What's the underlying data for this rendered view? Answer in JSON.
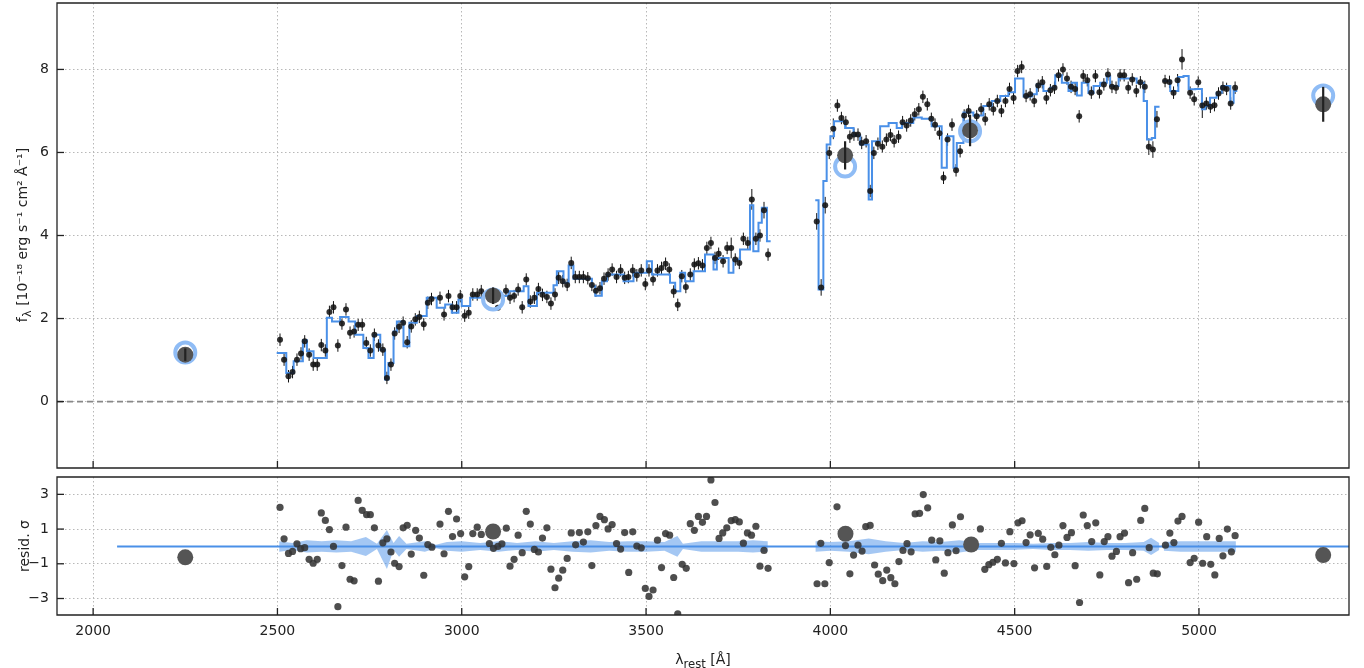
{
  "chart_data": [
    {
      "type": "scatter",
      "ylabel": "f$_{λ}$ [10⁻¹⁸ erg s⁻¹ cm² Å⁻¹]",
      "xlim": [
        1902,
        5407
      ],
      "xticks": [
        2000,
        2500,
        3000,
        3500,
        4000,
        4500,
        5000
      ],
      "ylim": [
        -1.6,
        9.6
      ],
      "yticks": [
        0,
        2,
        4,
        6,
        8
      ],
      "grid": true,
      "tick_labels": "y",
      "ref_lines": [
        {
          "axis": "y",
          "value": 0,
          "color": "#888888",
          "line_style": "dashed"
        }
      ],
      "series": [
        {
          "type": "step",
          "color": "#4a90e8",
          "x": [
            2498,
            2524,
            2544,
            2569,
            2580,
            2598,
            2634,
            2648,
            2670,
            2693,
            2711,
            2733,
            2747,
            2761,
            2779,
            2792,
            2801,
            2815,
            2824,
            2842,
            2858,
            2878,
            2905,
            2932,
            2955,
            2973,
            2991,
            3000,
            3023,
            3059,
            3127,
            3168,
            3181,
            3204,
            3249,
            3258,
            3276,
            3290,
            3303,
            3353,
            3362,
            3380,
            3394,
            3439,
            3466,
            3502,
            3516,
            3565,
            3579,
            3593,
            3606,
            3629,
            3660,
            3683,
            3692,
            3724,
            3737,
            3755,
            3782,
            3791,
            3805,
            3814,
            3828,
            3838,
            3900,
            3959,
            3968,
            3981,
            3990,
            4000,
            4010,
            4040,
            4063,
            4081,
            4104,
            4113,
            4135,
            4158,
            4180,
            4194,
            4225,
            4248,
            4275,
            4302,
            4316,
            4334,
            4343,
            4361,
            4388,
            4415,
            4438,
            4461,
            4483,
            4501,
            4524,
            4547,
            4560,
            4578,
            4596,
            4610,
            4628,
            4646,
            4655,
            4669,
            4682,
            4700,
            4714,
            4732,
            4750,
            4759,
            4782,
            4831,
            4850,
            4859,
            4872,
            4881,
            4893,
            4897,
            4902,
            4922,
            4944,
            4958,
            4972,
            4990,
            5008,
            5017,
            5030,
            5048,
            5062,
            5085,
            5094,
            5104
          ],
          "values": [
            1.17,
            0.69,
            0.97,
            1.48,
            1.21,
            1.05,
            2.02,
            1.93,
            2.04,
            1.93,
            1.61,
            1.29,
            1.05,
            1.61,
            1.25,
            0.53,
            0.93,
            1.69,
            1.93,
            1.33,
            1.9,
            2.06,
            2.5,
            2.26,
            2.34,
            2.14,
            2.46,
            2.3,
            2.5,
            2.55,
            2.66,
            2.78,
            2.3,
            2.62,
            2.8,
            3.14,
            2.86,
            3.28,
            2.96,
            2.78,
            2.55,
            2.9,
            3.06,
            2.9,
            3.1,
            3.38,
            3.06,
            2.86,
            2.66,
            3.1,
            2.9,
            3.14,
            3.54,
            3.18,
            3.46,
            3.1,
            3.42,
            3.66,
            4.73,
            3.62,
            4.31,
            4.67,
            3.86,
            3.86,
            null,
            4.85,
            2.7,
            5.31,
            6.19,
            6.39,
            6.75,
            6.59,
            6.41,
            6.19,
            4.87,
            6.27,
            6.63,
            6.71,
            6.59,
            6.71,
            6.84,
            6.81,
            6.63,
            5.63,
            6.39,
            5.63,
            6.23,
            6.96,
            6.89,
            7.12,
            7.24,
            7.36,
            7.45,
            7.78,
            7.35,
            7.4,
            7.64,
            7.48,
            7.56,
            7.86,
            7.68,
            7.48,
            7.68,
            7.37,
            7.68,
            7.43,
            7.6,
            7.68,
            7.84,
            7.6,
            7.78,
            7.68,
            7.24,
            6.31,
            6.35,
            7.1,
            7.1,
            null,
            7.72,
            7.48,
            7.82,
            7.84,
            7.52,
            7.53,
            7.04,
            7.12,
            7.32,
            7.44,
            7.6,
            7.2,
            7.48,
            7.48
          ]
        },
        {
          "type": "scatter",
          "color": "#111111",
          "marker": "circle",
          "x": [
            2507,
            2518,
            2530,
            2541,
            2553,
            2564,
            2574,
            2586,
            2597,
            2608,
            2619,
            2630,
            2641,
            2652,
            2664,
            2675,
            2686,
            2697,
            2708,
            2719,
            2730,
            2741,
            2752,
            2763,
            2774,
            2786,
            2797,
            2808,
            2818,
            2830,
            2841,
            2852,
            2863,
            2874,
            2885,
            2897,
            2908,
            2918,
            2941,
            2952,
            2964,
            2975,
            2986,
            2996,
            3008,
            3019,
            3030,
            3042,
            3053,
            3098,
            3120,
            3131,
            3142,
            3153,
            3164,
            3175,
            3186,
            3197,
            3208,
            3219,
            3231,
            3242,
            3253,
            3263,
            3274,
            3286,
            3297,
            3308,
            3319,
            3330,
            3342,
            3353,
            3364,
            3375,
            3386,
            3397,
            3408,
            3420,
            3431,
            3442,
            3452,
            3464,
            3475,
            3487,
            3498,
            3508,
            3519,
            3531,
            3542,
            3553,
            3563,
            3575,
            3586,
            3597,
            3608,
            3620,
            3631,
            3642,
            3653,
            3665,
            3676,
            3687,
            3697,
            3709,
            3720,
            3731,
            3742,
            3753,
            3764,
            3776,
            3787,
            3798,
            3809,
            3820,
            3831,
            3963,
            3975,
            3986,
            3997,
            4008,
            4019,
            4030,
            4042,
            4053,
            4064,
            4075,
            4085,
            4097,
            4108,
            4118,
            4129,
            4141,
            4152,
            4163,
            4173,
            4185,
            4196,
            4207,
            4218,
            4229,
            4240,
            4251,
            4263,
            4274,
            4284,
            4296,
            4307,
            4318,
            4330,
            4341,
            4352,
            4363,
            4375,
            4397,
            4409,
            4420,
            4431,
            4442,
            4453,
            4464,
            4475,
            4486,
            4497,
            4508,
            4519,
            4531,
            4542,
            4553,
            4564,
            4575,
            4586,
            4597,
            4608,
            4619,
            4631,
            4642,
            4653,
            4664,
            4675,
            4686,
            4697,
            4708,
            4719,
            4730,
            4742,
            4753,
            4764,
            4775,
            4786,
            4797,
            4808,
            4819,
            4830,
            4841,
            4853,
            4864,
            4875,
            4886,
            4908,
            4920,
            4931,
            4942,
            4954,
            4976,
            4987,
            4998,
            5009,
            5020,
            5031,
            5042,
            5053,
            5065,
            5075,
            5086,
            5098
          ],
          "values": [
            1.49,
            1.01,
            0.61,
            0.71,
            1.01,
            1.16,
            1.45,
            1.13,
            0.89,
            0.89,
            1.36,
            1.23,
            2.16,
            2.27,
            1.35,
            1.88,
            2.22,
            1.66,
            1.69,
            1.85,
            1.85,
            1.41,
            1.23,
            1.61,
            1.35,
            1.25,
            0.57,
            0.89,
            1.64,
            1.8,
            1.9,
            1.43,
            1.81,
            1.98,
            2.04,
            1.86,
            2.38,
            2.47,
            2.5,
            2.1,
            2.54,
            2.27,
            2.27,
            2.54,
            2.07,
            2.14,
            2.58,
            2.58,
            2.66,
            2.26,
            2.67,
            2.5,
            2.54,
            2.7,
            2.27,
            2.94,
            2.41,
            2.5,
            2.71,
            2.57,
            2.52,
            2.36,
            2.58,
            2.98,
            2.9,
            2.81,
            3.34,
            3.0,
            3.0,
            3.0,
            2.97,
            2.81,
            2.67,
            2.73,
            2.96,
            3.06,
            3.18,
            3.0,
            3.16,
            2.98,
            3.0,
            3.16,
            3.04,
            3.16,
            2.83,
            3.16,
            2.94,
            3.16,
            3.22,
            3.32,
            3.18,
            2.65,
            2.33,
            3.02,
            2.76,
            3.06,
            3.3,
            3.33,
            3.28,
            3.7,
            3.82,
            3.46,
            3.56,
            3.38,
            3.7,
            3.7,
            3.42,
            3.34,
            3.92,
            3.82,
            4.87,
            3.92,
            4.0,
            4.61,
            3.54,
            4.34,
            2.75,
            4.73,
            5.99,
            6.57,
            7.13,
            6.83,
            6.73,
            6.38,
            6.43,
            6.43,
            6.23,
            6.27,
            5.07,
            5.99,
            6.21,
            6.14,
            6.31,
            6.42,
            6.27,
            6.38,
            6.73,
            6.65,
            6.77,
            6.92,
            7.04,
            7.34,
            7.16,
            6.81,
            6.67,
            6.46,
            5.39,
            6.31,
            6.67,
            5.57,
            6.03,
            6.89,
            7.0,
            6.87,
            7.04,
            6.8,
            7.16,
            7.04,
            7.24,
            7.0,
            7.24,
            7.53,
            7.31,
            7.96,
            8.06,
            7.36,
            7.4,
            7.24,
            7.61,
            7.69,
            7.31,
            7.5,
            7.56,
            7.86,
            8.0,
            7.78,
            7.58,
            7.53,
            6.87,
            7.84,
            7.74,
            7.44,
            7.84,
            7.45,
            7.64,
            7.88,
            7.58,
            7.56,
            7.86,
            7.86,
            7.56,
            7.76,
            7.48,
            7.69,
            7.58,
            6.14,
            6.07,
            6.8,
            7.72,
            7.7,
            7.44,
            7.74,
            8.24,
            7.44,
            7.28,
            7.69,
            7.13,
            7.18,
            7.1,
            7.14,
            7.42,
            7.56,
            7.53,
            7.18,
            7.56
          ],
          "errors": [
            0.15,
            0.15,
            0.15,
            0.15,
            0.15,
            0.15,
            0.15,
            0.15,
            0.15,
            0.15,
            0.15,
            0.15,
            0.15,
            0.15,
            0.15,
            0.15,
            0.15,
            0.15,
            0.15,
            0.15,
            0.15,
            0.15,
            0.15,
            0.15,
            0.15,
            0.15,
            0.15,
            0.15,
            0.15,
            0.15,
            0.15,
            0.15,
            0.15,
            0.15,
            0.15,
            0.15,
            0.15,
            0.15,
            0.15,
            0.15,
            0.15,
            0.15,
            0.15,
            0.15,
            0.15,
            0.15,
            0.15,
            0.15,
            0.15,
            0.05,
            0.15,
            0.15,
            0.15,
            0.15,
            0.15,
            0.15,
            0.15,
            0.15,
            0.15,
            0.15,
            0.15,
            0.15,
            0.15,
            0.15,
            0.15,
            0.15,
            0.15,
            0.15,
            0.15,
            0.15,
            0.15,
            0.15,
            0.15,
            0.15,
            0.15,
            0.15,
            0.15,
            0.15,
            0.15,
            0.15,
            0.15,
            0.15,
            0.15,
            0.15,
            0.15,
            0.15,
            0.15,
            0.15,
            0.15,
            0.15,
            0.15,
            0.15,
            0.15,
            0.15,
            0.15,
            0.15,
            0.15,
            0.15,
            0.15,
            0.15,
            0.15,
            0.15,
            0.15,
            0.15,
            0.15,
            0.25,
            0.15,
            0.15,
            0.15,
            0.15,
            0.25,
            0.15,
            0.15,
            0.2,
            0.15,
            0.2,
            0.2,
            0.2,
            0.15,
            0.25,
            0.15,
            0.15,
            0.15,
            0.15,
            0.15,
            0.15,
            0.15,
            0.15,
            0.15,
            0.15,
            0.15,
            0.15,
            0.15,
            0.15,
            0.15,
            0.15,
            0.15,
            0.15,
            0.15,
            0.15,
            0.15,
            0.15,
            0.15,
            0.15,
            0.15,
            0.15,
            0.15,
            0.15,
            0.15,
            0.15,
            0.15,
            0.15,
            0.15,
            0.15,
            0.15,
            0.15,
            0.15,
            0.15,
            0.15,
            0.15,
            0.15,
            0.15,
            0.15,
            0.15,
            0.15,
            0.15,
            0.15,
            0.15,
            0.15,
            0.15,
            0.15,
            0.15,
            0.15,
            0.15,
            0.15,
            0.15,
            0.15,
            0.15,
            0.15,
            0.15,
            0.15,
            0.15,
            0.15,
            0.15,
            0.15,
            0.15,
            0.15,
            0.15,
            0.15,
            0.15,
            0.15,
            0.15,
            0.15,
            0.15,
            0.15,
            0.2,
            0.2,
            0.2,
            0.15,
            0.15,
            0.15,
            0.15,
            0.25,
            0.15,
            0.15,
            0.15,
            0.3,
            0.15,
            0.15,
            0.15,
            0.15,
            0.15,
            0.15,
            0.15,
            0.15
          ]
        },
        {
          "type": "scatter",
          "color": "#8fbcf5",
          "marker": "circle",
          "x": [
            2250,
            3085,
            4040,
            4379,
            5337
          ],
          "values": [
            1.18,
            2.46,
            5.66,
            6.51,
            7.37
          ]
        },
        {
          "type": "scatter",
          "color": "#555555",
          "marker": "circle",
          "x": [
            2250,
            3085,
            4040,
            4379,
            5337
          ],
          "values": [
            1.13,
            2.55,
            5.93,
            6.53,
            7.16
          ],
          "errors": [
            0.15,
            0.2,
            0.34,
            0.38,
            0.42
          ]
        }
      ]
    },
    {
      "type": "scatter",
      "xlabel": "λ$_{rest}$ [Å]",
      "ylabel": "resid. σ",
      "xlim": [
        1902,
        5407
      ],
      "xticks": [
        2000,
        2500,
        3000,
        3500,
        4000,
        4500,
        5000
      ],
      "ylim": [
        -3.95,
        4.0
      ],
      "yticks": [
        {
          "value": -3,
          "label": "−3"
        },
        {
          "value": -1,
          "label": "−1"
        },
        1,
        3
      ],
      "grid": true,
      "series": [
        {
          "type": "line",
          "color": "#4a90e8",
          "x": [
            2065,
            2505,
            2540,
            2580,
            2620,
            2660,
            2700,
            2740,
            2770,
            2797,
            2815,
            2830,
            2850,
            2900,
            2930,
            2960,
            3000,
            3050,
            3100,
            3150,
            3200,
            3250,
            3300,
            3350,
            3400,
            3450,
            3500,
            3550,
            3585,
            3600,
            3650,
            3700,
            3750,
            3790,
            3830,
            3840,
            3955,
            3960,
            4000,
            4050,
            4104,
            4150,
            4200,
            4250,
            4300,
            4350,
            4400,
            4450,
            4500,
            4550,
            4600,
            4650,
            4700,
            4750,
            4800,
            4850,
            4870,
            4892,
            4897,
            4905,
            4950,
            5000,
            5050,
            5100,
            5407
          ],
          "values": [
            0,
            0,
            0,
            0,
            0,
            0,
            0,
            0,
            0,
            0,
            0,
            0,
            0,
            0,
            0,
            0,
            0,
            0,
            0,
            0,
            0,
            0,
            0,
            0,
            0,
            0,
            0,
            0,
            0,
            0,
            0,
            0,
            0,
            0,
            0,
            0,
            0,
            0,
            0,
            0,
            0,
            0,
            0,
            0,
            0,
            0,
            0,
            0,
            0,
            0,
            0,
            0,
            0,
            0,
            0,
            0,
            0,
            0,
            0,
            0,
            0,
            0,
            0,
            0,
            0
          ],
          "lower": [
            null,
            -0.3,
            -0.2,
            -0.35,
            -0.3,
            -0.35,
            -0.3,
            -0.55,
            -0.15,
            -1.3,
            -0.2,
            -0.6,
            -0.15,
            -0.3,
            -0.1,
            -0.25,
            -0.3,
            -0.2,
            -0.3,
            -0.2,
            -0.3,
            -0.2,
            -0.3,
            -0.35,
            -0.25,
            -0.3,
            -0.3,
            -0.25,
            -0.6,
            -0.15,
            -0.3,
            -0.3,
            -0.3,
            -0.35,
            -0.3,
            null,
            null,
            -0.3,
            -0.25,
            -0.3,
            -0.45,
            -0.3,
            -0.2,
            -0.3,
            -0.25,
            -0.35,
            -0.2,
            -0.2,
            -0.2,
            -0.15,
            -0.2,
            -0.2,
            -0.25,
            -0.2,
            -0.2,
            -0.25,
            -0.5,
            -0.2,
            null,
            -0.25,
            -0.3,
            -0.3,
            -0.3,
            -0.3,
            null
          ],
          "upper": [
            null,
            0.3,
            0.2,
            0.35,
            0.3,
            0.35,
            0.3,
            0.55,
            0.15,
            0.95,
            0.2,
            0.6,
            0.15,
            0.3,
            0.1,
            0.25,
            0.3,
            0.2,
            0.3,
            0.2,
            0.3,
            0.2,
            0.3,
            0.35,
            0.25,
            0.3,
            0.3,
            0.25,
            0.6,
            0.15,
            0.3,
            0.3,
            0.3,
            0.35,
            0.3,
            null,
            null,
            0.3,
            0.25,
            0.3,
            0.45,
            0.3,
            0.2,
            0.3,
            0.25,
            0.35,
            0.2,
            0.2,
            0.2,
            0.15,
            0.2,
            0.2,
            0.25,
            0.2,
            0.2,
            0.25,
            0.5,
            0.2,
            null,
            0.25,
            0.3,
            0.3,
            0.3,
            0.3,
            null
          ]
        },
        {
          "type": "scatter",
          "color": "#333333",
          "marker": "circle",
          "x": [
            2507,
            2518,
            2530,
            2541,
            2553,
            2563,
            2574,
            2586,
            2597,
            2608,
            2619,
            2630,
            2641,
            2652,
            2664,
            2675,
            2686,
            2697,
            2708,
            2719,
            2730,
            2742,
            2752,
            2763,
            2774,
            2786,
            2797,
            2808,
            2818,
            2830,
            2841,
            2852,
            2863,
            2875,
            2885,
            2897,
            2908,
            2919,
            2941,
            2952,
            2964,
            2975,
            2986,
            2997,
            3008,
            3019,
            3030,
            3042,
            3053,
            3075,
            3086,
            3098,
            3109,
            3121,
            3131,
            3142,
            3153,
            3164,
            3175,
            3186,
            3197,
            3208,
            3219,
            3231,
            3242,
            3253,
            3263,
            3274,
            3286,
            3297,
            3309,
            3319,
            3330,
            3342,
            3353,
            3364,
            3375,
            3387,
            3397,
            3408,
            3420,
            3431,
            3442,
            3453,
            3464,
            3475,
            3487,
            3498,
            3508,
            3519,
            3531,
            3542,
            3553,
            3564,
            3575,
            3586,
            3598,
            3609,
            3620,
            3631,
            3642,
            3653,
            3664,
            3676,
            3687,
            3698,
            3708,
            3719,
            3731,
            3742,
            3753,
            3764,
            3775,
            3786,
            3798,
            3809,
            3820,
            3831,
            3964,
            3974,
            3985,
            3997,
            4018,
            4041,
            4053,
            4063,
            4075,
            4086,
            4096,
            4108,
            4120,
            4130,
            4142,
            4153,
            4164,
            4175,
            4186,
            4197,
            4208,
            4219,
            4230,
            4242,
            4252,
            4264,
            4275,
            4286,
            4297,
            4309,
            4319,
            4331,
            4341,
            4353,
            4407,
            4419,
            4430,
            4441,
            4453,
            4464,
            4475,
            4487,
            4498,
            4509,
            4520,
            4531,
            4542,
            4554,
            4564,
            4576,
            4587,
            4598,
            4609,
            4620,
            4631,
            4642,
            4654,
            4664,
            4676,
            4686,
            4697,
            4709,
            4720,
            4731,
            4743,
            4753,
            4764,
            4776,
            4786,
            4798,
            4809,
            4820,
            4831,
            4842,
            4853,
            4865,
            4876,
            4887,
            4909,
            4921,
            4932,
            4943,
            4954,
            4976,
            4987,
            4999,
            5010,
            5021,
            5032,
            5043,
            5055,
            5065,
            5077,
            5088,
            5098
          ],
          "values": [
            2.25,
            0.44,
            -0.4,
            -0.29,
            0.15,
            -0.13,
            -0.07,
            -0.74,
            -0.97,
            -0.74,
            1.93,
            1.5,
            0.97,
            0.0,
            -3.47,
            -1.1,
            1.11,
            -1.89,
            -1.98,
            2.65,
            2.08,
            1.83,
            1.83,
            1.07,
            -2.0,
            0.21,
            0.44,
            -0.32,
            -0.97,
            -1.16,
            1.07,
            1.22,
            -0.44,
            0.93,
            0.48,
            -1.66,
            0.11,
            -0.04,
            1.29,
            -0.42,
            2.02,
            0.57,
            1.58,
            0.74,
            -1.75,
            -1.16,
            0.74,
            1.11,
            0.69,
            0.17,
            -0.11,
            0.0,
            0.15,
            1.05,
            -1.14,
            -0.74,
            0.65,
            -0.36,
            2.02,
            1.29,
            -0.17,
            -0.32,
            0.48,
            1.07,
            -1.31,
            -2.38,
            -1.83,
            -1.37,
            -0.69,
            0.78,
            0.09,
            0.8,
            0.25,
            0.84,
            -1.1,
            1.2,
            1.73,
            1.54,
            1.01,
            1.26,
            0.17,
            -0.15,
            0.8,
            -1.5,
            0.84,
            0.02,
            -0.08,
            -2.42,
            -2.88,
            -2.51,
            0.36,
            -1.22,
            0.74,
            0.65,
            -1.79,
            -3.89,
            -1.03,
            -1.26,
            1.31,
            0.93,
            1.73,
            1.39,
            1.73,
            3.83,
            2.53,
            0.46,
            0.78,
            1.07,
            1.49,
            1.54,
            1.41,
            0.19,
            0.78,
            0.65,
            1.16,
            -1.14,
            -0.23,
            -1.26,
            -2.15,
            0.18,
            -2.15,
            -0.93,
            2.28,
            0.05,
            -1.58,
            -0.5,
            0.07,
            -0.27,
            1.14,
            1.21,
            -1.07,
            -1.6,
            -1.97,
            -1.36,
            -1.8,
            -2.15,
            -0.87,
            -0.23,
            0.16,
            -0.31,
            1.87,
            1.91,
            2.99,
            2.22,
            0.36,
            -0.78,
            0.32,
            -1.54,
            -0.36,
            1.24,
            -0.25,
            1.71,
            1.01,
            -1.32,
            -1.05,
            -0.91,
            -0.74,
            0.18,
            -0.95,
            0.85,
            -0.99,
            1.36,
            1.48,
            0.22,
            0.67,
            -1.23,
            0.75,
            0.42,
            -1.15,
            -0.05,
            -0.48,
            0.07,
            1.2,
            0.52,
            0.79,
            -1.11,
            -3.23,
            1.81,
            1.2,
            0.28,
            1.36,
            -1.64,
            0.28,
            0.56,
            -0.56,
            -0.29,
            0.56,
            0.77,
            -2.09,
            -0.36,
            -1.89,
            1.5,
            2.19,
            -0.07,
            -1.54,
            -1.58,
            0.07,
            0.77,
            0.22,
            1.46,
            1.73,
            -0.93,
            -0.68,
            1.4,
            -0.97,
            0.56,
            -1.03,
            -1.64,
            0.46,
            -0.54,
            1.0,
            -0.31,
            0.62
          ]
        },
        {
          "type": "scatter",
          "color": "#555555",
          "marker": "circle",
          "x": [
            2250,
            3085,
            4041,
            4382,
            5337
          ],
          "values": [
            -0.63,
            0.86,
            0.73,
            0.11,
            -0.5
          ]
        }
      ]
    }
  ]
}
